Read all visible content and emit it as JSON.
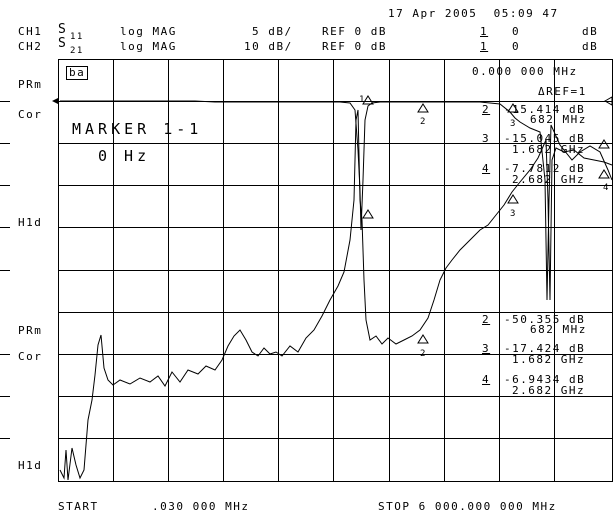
{
  "header": {
    "date_time": "17 Apr 2005  05:09 47",
    "ch1": {
      "name": "CH1",
      "param": "S",
      "sub": "11",
      "format": "log MAG",
      "scale": "5 dB/",
      "ref": "REF 0 dB",
      "mkr_idx": "1",
      "mkr_val": "0",
      "mkr_unit": "dB"
    },
    "ch2": {
      "name": "CH2",
      "param": "S",
      "sub": "21",
      "format": "log MAG",
      "scale": "10 dB/",
      "ref": "REF 0 dB",
      "mkr_idx": "1",
      "mkr_val": "0",
      "mkr_unit": "dB"
    }
  },
  "left_labels": {
    "prm1": "PRm",
    "cor1": "Cor",
    "hld1": "H1d",
    "prm2": "PRm",
    "cor2": "Cor",
    "hld2": "H1d"
  },
  "screen": {
    "tag": "ba",
    "marker_title": "MARKER 1-1",
    "marker_freq": "0 Hz",
    "marker_readout": "0.000 000 MHz",
    "delta_ref": "ΔREF=1",
    "ch1_markers": [
      {
        "num": "2",
        "val": "-15.414 dB",
        "freq": "682 MHz"
      },
      {
        "num": "3",
        "val": "-15.045 dB",
        "freq": "1.682 GHz"
      },
      {
        "num": "4",
        "val": "-7.7812 dB",
        "freq": "2.682 GHz"
      }
    ],
    "ch2_markers": [
      {
        "num": "2",
        "val": "-50.355 dB",
        "freq": "682 MHz"
      },
      {
        "num": "3",
        "val": "-17.424 dB",
        "freq": "1.682 GHz"
      },
      {
        "num": "4",
        "val": "-6.9434 dB",
        "freq": "2.682 GHz"
      }
    ]
  },
  "footer": {
    "start_label": "START",
    "start_value": ".030 000 MHz",
    "stop": "STOP 6 000.000 000 MHz"
  }
}
